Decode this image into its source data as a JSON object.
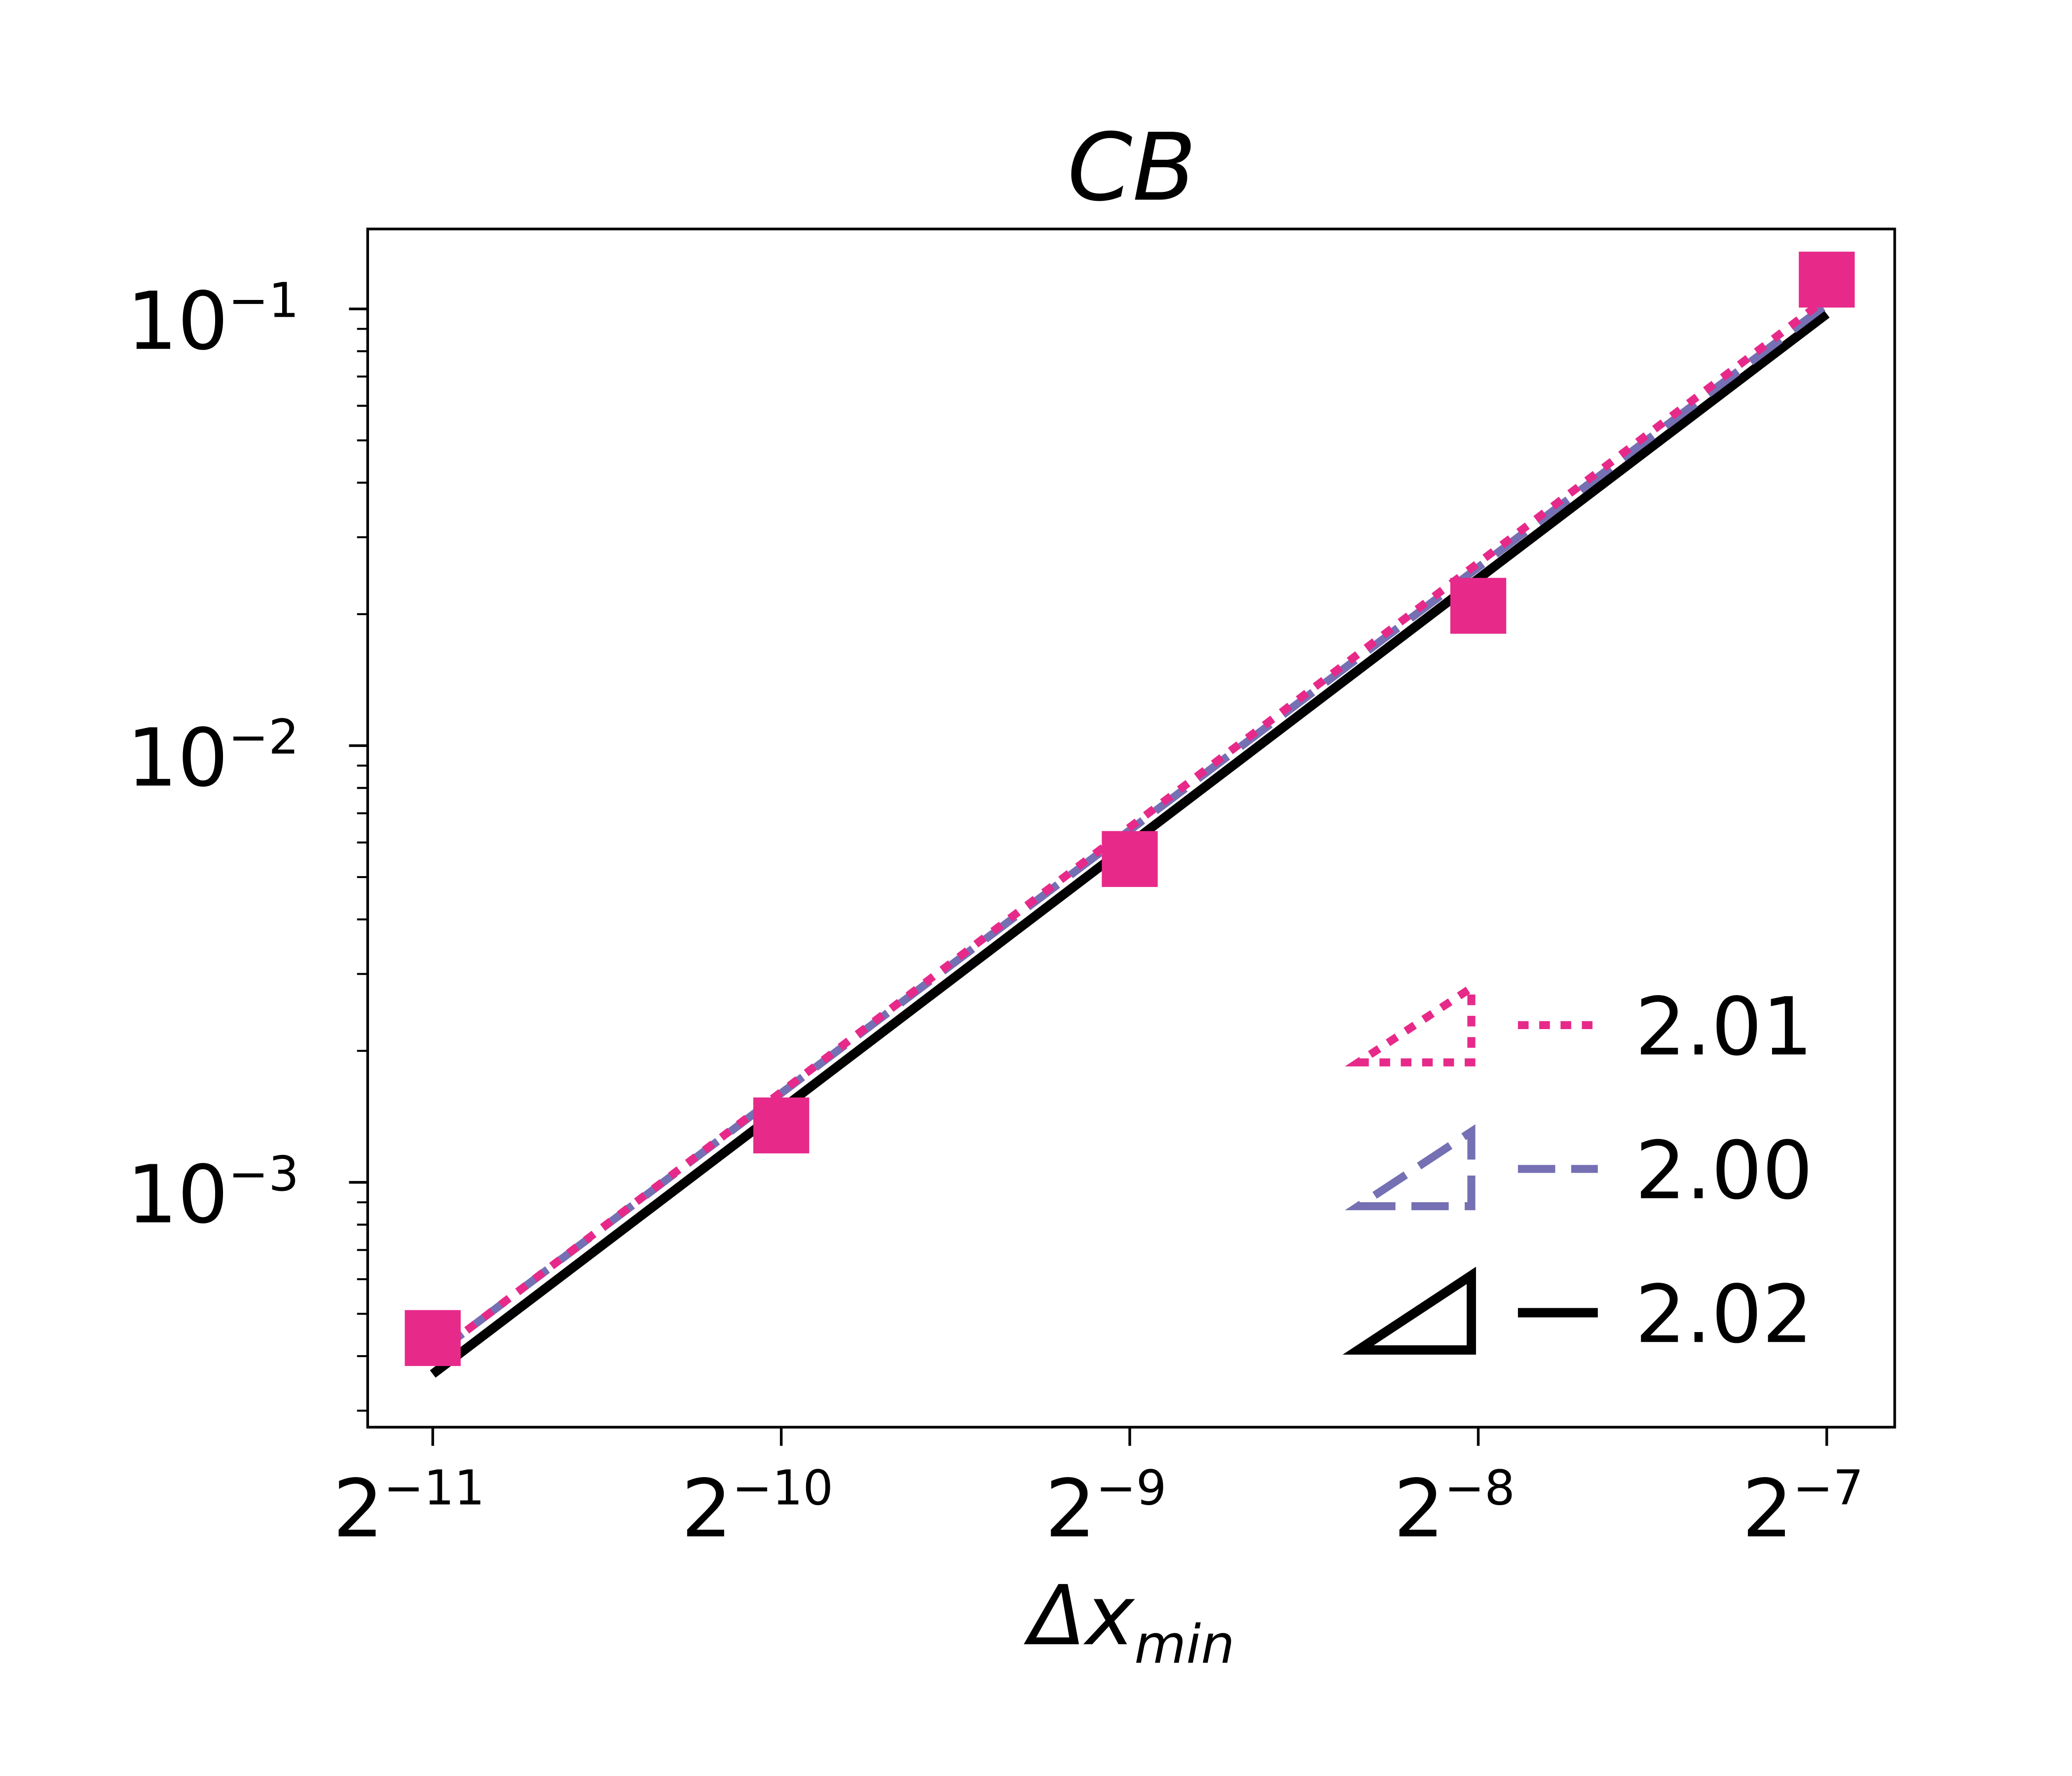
{
  "chart_data": {
    "type": "line",
    "title": "CB",
    "xlabel": "Δx_min",
    "x": [
      0.00048828125,
      0.0009765625,
      0.001953125,
      0.00390625,
      0.0078125
    ],
    "series": [
      {
        "name": "2.01",
        "color": "#e7298a",
        "dash": "dotted",
        "values": [
          0.0004,
          0.00161,
          0.0065,
          0.0262,
          0.1057
        ]
      },
      {
        "name": "2.00",
        "color": "#7570b3",
        "dash": "dashed",
        "values": [
          0.0004,
          0.0016,
          0.0064,
          0.0256,
          0.1024
        ]
      },
      {
        "name": "2.02",
        "color": "#000000",
        "dash": "solid",
        "values": [
          0.000364,
          0.00147,
          0.00595,
          0.0241,
          0.0974
        ]
      },
      {
        "color": "#e7298a",
        "marker": "square",
        "values": [
          0.00044,
          0.00135,
          0.0055,
          0.0209,
          0.1167
        ]
      }
    ],
    "xscale": "log2",
    "yscale": "log10",
    "xlim": [
      0.000429,
      0.008943
    ],
    "ylim": [
      0.000275,
      0.1524
    ],
    "xticks": [
      {
        "value": 0.00048828125,
        "label": "2^−11"
      },
      {
        "value": 0.0009765625,
        "label": "2^−10"
      },
      {
        "value": 0.001953125,
        "label": "2^−9"
      },
      {
        "value": 0.00390625,
        "label": "2^−8"
      },
      {
        "value": 0.0078125,
        "label": "2^−7"
      }
    ],
    "yticks": [
      {
        "value": 0.001,
        "label": "10^−3"
      },
      {
        "value": 0.01,
        "label": "10^−2"
      },
      {
        "value": 0.1,
        "label": "10^−1"
      }
    ],
    "yminorticks": [
      0.0003,
      0.0004,
      0.0005,
      0.0006,
      0.0007,
      0.0008,
      0.0009,
      0.002,
      0.003,
      0.004,
      0.005,
      0.006,
      0.007,
      0.008,
      0.009,
      0.02,
      0.03,
      0.04,
      0.05,
      0.06,
      0.07,
      0.08,
      0.09
    ],
    "legend": "lower right",
    "grid": false
  }
}
